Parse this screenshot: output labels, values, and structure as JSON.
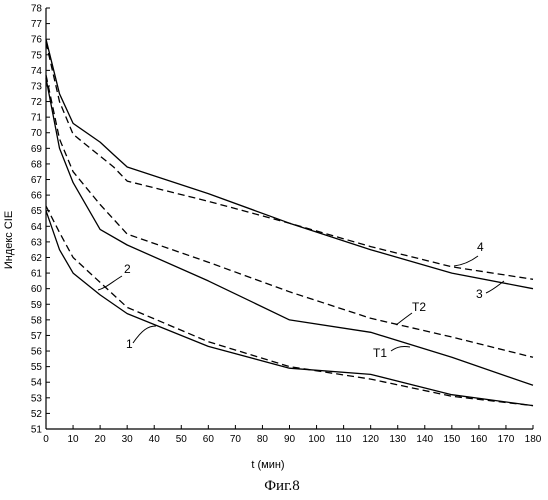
{
  "chart_data": {
    "type": "line",
    "title": "",
    "xlabel": "t (мин)",
    "ylabel": "Индекс CIE",
    "caption": "Фиг.8",
    "xlim": [
      0,
      180
    ],
    "ylim": [
      51,
      78
    ],
    "xticks": [
      0,
      10,
      20,
      30,
      40,
      50,
      60,
      70,
      80,
      90,
      100,
      110,
      120,
      130,
      140,
      150,
      160,
      170,
      180
    ],
    "yticks": [
      51,
      52,
      53,
      54,
      55,
      56,
      57,
      58,
      59,
      60,
      61,
      62,
      63,
      64,
      65,
      66,
      67,
      68,
      69,
      70,
      71,
      72,
      73,
      74,
      75,
      76,
      77,
      78
    ],
    "grid": false,
    "series": [
      {
        "name": "1",
        "style": "solid",
        "x": [
          0,
          5,
          10,
          20,
          30,
          60,
          90,
          120,
          150,
          180
        ],
        "y": [
          65.0,
          62.5,
          61.0,
          59.6,
          58.4,
          56.3,
          54.9,
          54.5,
          53.2,
          52.5
        ]
      },
      {
        "name": "2",
        "style": "dashed",
        "x": [
          0,
          5,
          10,
          20,
          30,
          60,
          90,
          120,
          150,
          180
        ],
        "y": [
          65.3,
          63.6,
          62.0,
          60.4,
          58.8,
          56.6,
          55.0,
          54.2,
          53.1,
          52.5
        ]
      },
      {
        "name": "3",
        "style": "solid",
        "x": [
          0,
          5,
          10,
          20,
          25,
          30,
          60,
          90,
          120,
          150,
          180
        ],
        "y": [
          76.0,
          72.5,
          70.6,
          69.4,
          68.6,
          67.8,
          66.1,
          64.2,
          62.5,
          61.0,
          60.0
        ]
      },
      {
        "name": "4",
        "style": "dashed",
        "x": [
          0,
          5,
          10,
          20,
          25,
          30,
          60,
          90,
          120,
          150,
          180
        ],
        "y": [
          75.8,
          72.0,
          69.9,
          68.5,
          67.8,
          66.9,
          65.6,
          64.2,
          62.7,
          61.4,
          60.6
        ]
      },
      {
        "name": "T1",
        "style": "solid",
        "x": [
          0,
          5,
          10,
          20,
          30,
          60,
          90,
          120,
          150,
          180
        ],
        "y": [
          73.5,
          69.0,
          66.8,
          63.8,
          62.8,
          60.5,
          58.0,
          57.2,
          55.6,
          53.8
        ]
      },
      {
        "name": "T2",
        "style": "dashed",
        "x": [
          0,
          5,
          10,
          20,
          30,
          60,
          90,
          120,
          150,
          180
        ],
        "y": [
          73.7,
          69.6,
          67.5,
          65.4,
          63.5,
          61.7,
          59.8,
          58.1,
          56.9,
          55.6
        ]
      }
    ]
  }
}
